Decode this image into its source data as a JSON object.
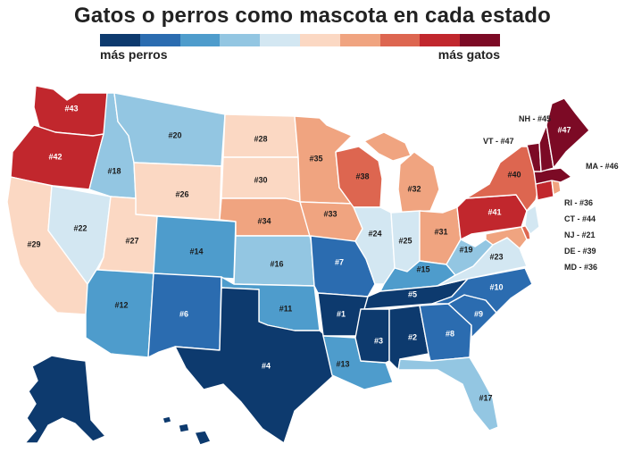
{
  "title": "Gatos o perros como mascota en cada estado",
  "legend": {
    "left_label": "más perros",
    "right_label": "más gatos",
    "colors": [
      "#0d3a6e",
      "#2b6cb0",
      "#4e9ccc",
      "#93c6e2",
      "#d3e7f2",
      "#fbd8c3",
      "#f0a480",
      "#dd6650",
      "#c1272d",
      "#7c0a25"
    ]
  },
  "states": {
    "WA": {
      "rank": "#43",
      "color": "#c1272d"
    },
    "OR": {
      "rank": "#42",
      "color": "#c1272d"
    },
    "CA": {
      "rank": "#29",
      "color": "#fbd8c3"
    },
    "NV": {
      "rank": "#22",
      "color": "#d3e7f2"
    },
    "ID": {
      "rank": "#18",
      "color": "#93c6e2"
    },
    "MT": {
      "rank": "#20",
      "color": "#93c6e2"
    },
    "WY": {
      "rank": "#26",
      "color": "#fbd8c3"
    },
    "UT": {
      "rank": "#27",
      "color": "#fbd8c3"
    },
    "AZ": {
      "rank": "#12",
      "color": "#4e9ccc"
    },
    "CO": {
      "rank": "#14",
      "color": "#4e9ccc"
    },
    "NM": {
      "rank": "#6",
      "color": "#2b6cb0"
    },
    "ND": {
      "rank": "#28",
      "color": "#fbd8c3"
    },
    "SD": {
      "rank": "#30",
      "color": "#fbd8c3"
    },
    "NE": {
      "rank": "#34",
      "color": "#f0a480"
    },
    "KS": {
      "rank": "#16",
      "color": "#93c6e2"
    },
    "OK": {
      "rank": "#11",
      "color": "#4e9ccc"
    },
    "TX": {
      "rank": "#4",
      "color": "#0d3a6e"
    },
    "MN": {
      "rank": "#35",
      "color": "#f0a480"
    },
    "IA": {
      "rank": "#33",
      "color": "#f0a480"
    },
    "MO": {
      "rank": "#7",
      "color": "#2b6cb0"
    },
    "AR": {
      "rank": "#1",
      "color": "#0d3a6e"
    },
    "LA": {
      "rank": "#13",
      "color": "#4e9ccc"
    },
    "WI": {
      "rank": "#38",
      "color": "#dd6650"
    },
    "IL": {
      "rank": "#24",
      "color": "#d3e7f2"
    },
    "MI": {
      "rank": "#32",
      "color": "#f0a480"
    },
    "IN": {
      "rank": "#25",
      "color": "#d3e7f2"
    },
    "OH": {
      "rank": "#31",
      "color": "#f0a480"
    },
    "KY": {
      "rank": "#15",
      "color": "#4e9ccc"
    },
    "TN": {
      "rank": "#5",
      "color": "#0d3a6e"
    },
    "MS": {
      "rank": "#3",
      "color": "#0d3a6e"
    },
    "AL": {
      "rank": "#2",
      "color": "#0d3a6e"
    },
    "GA": {
      "rank": "#8",
      "color": "#2b6cb0"
    },
    "FL": {
      "rank": "#17",
      "color": "#93c6e2"
    },
    "SC": {
      "rank": "#9",
      "color": "#2b6cb0"
    },
    "NC": {
      "rank": "#10",
      "color": "#2b6cb0"
    },
    "VA": {
      "rank": "#23",
      "color": "#d3e7f2"
    },
    "WV": {
      "rank": "#19",
      "color": "#93c6e2"
    },
    "PA": {
      "rank": "#41",
      "color": "#c1272d"
    },
    "NY": {
      "rank": "#40",
      "color": "#dd6650"
    },
    "ME": {
      "rank": "#47",
      "color": "#7c0a25"
    },
    "AK": {
      "rank": "",
      "color": "#0d3a6e"
    },
    "HI": {
      "rank": "",
      "color": "#0d3a6e"
    },
    "VT": {
      "color": "#7c0a25"
    },
    "NH": {
      "color": "#7c0a25"
    },
    "MA": {
      "color": "#7c0a25"
    },
    "RI": {
      "color": "#f0a480"
    },
    "CT": {
      "color": "#c1272d"
    },
    "NJ": {
      "color": "#d3e7f2"
    },
    "DE": {
      "color": "#dd6650"
    },
    "MD": {
      "color": "#f0a480"
    }
  },
  "side_labels": {
    "NH": "NH - #45",
    "VT": "VT - #47",
    "MA": "MA - #46",
    "RI": "RI - #36",
    "CT": "CT - #44",
    "NJ": "NJ - #21",
    "DE": "DE - #39",
    "MD": "MD - #36"
  }
}
